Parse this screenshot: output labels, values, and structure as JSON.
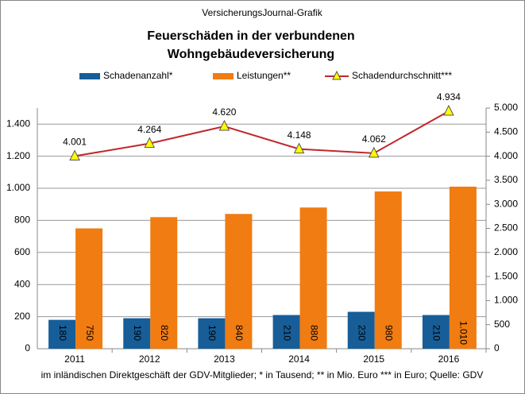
{
  "chart_data": {
    "type": "bar-line",
    "subtitle": "VersicherungsJournal-Grafik",
    "title": [
      "Feuerschäden  in der verbundenen",
      "Wohngebäudeversicherung"
    ],
    "categories": [
      "2011",
      "2012",
      "2013",
      "2014",
      "2015",
      "2016"
    ],
    "series": [
      {
        "name": "Schadenanzahl*",
        "type": "bar",
        "color": "#175e98",
        "values": [
          180,
          190,
          190,
          210,
          230,
          210
        ]
      },
      {
        "name": "Leistungen**",
        "type": "bar",
        "color": "#f07c12",
        "values": [
          750,
          820,
          840,
          880,
          980,
          1010
        ],
        "value_labels": [
          "750",
          "820",
          "840",
          "880",
          "980",
          "1.010"
        ]
      },
      {
        "name": "Schadendurchschnitt***",
        "type": "line",
        "axis": "y2",
        "color": "#c1272d",
        "marker_color": "#ffff00",
        "values": [
          4001,
          4264,
          4620,
          4148,
          4062,
          4934
        ],
        "value_labels": [
          "4.001",
          "4.264",
          "4.620",
          "4.148",
          "4.062",
          "4.934"
        ]
      }
    ],
    "ylim": [
      0,
      1500
    ],
    "yticks": [
      0,
      200,
      400,
      600,
      800,
      {
        "value": 1000,
        "label": "1.000"
      },
      {
        "value": 1200,
        "label": "1.200"
      },
      {
        "value": 1400,
        "label": "1.400"
      }
    ],
    "y2lim": [
      0,
      5000
    ],
    "y2ticks": [
      0,
      500,
      {
        "value": 1000,
        "label": "1.000"
      },
      {
        "value": 1500,
        "label": "1.500"
      },
      {
        "value": 2000,
        "label": "2.000"
      },
      {
        "value": 2500,
        "label": "2.500"
      },
      {
        "value": 3000,
        "label": "3.000"
      },
      {
        "value": 3500,
        "label": "3.500"
      },
      {
        "value": 4000,
        "label": "4.000"
      },
      {
        "value": 4500,
        "label": "4.500"
      },
      {
        "value": 5000,
        "label": "5.000"
      }
    ],
    "grid": true,
    "legend": "top",
    "footnote": "im inländischen Direktgeschäft der GDV-Mitglieder; * in Tausend; ** in Mio. Euro *** in Euro; Quelle: GDV"
  }
}
